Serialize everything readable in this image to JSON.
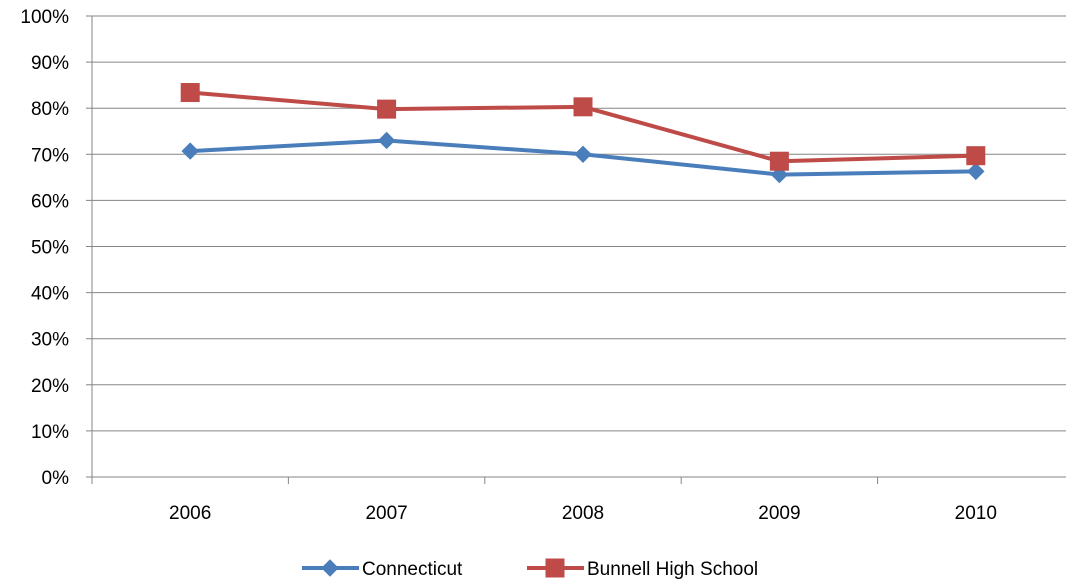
{
  "chart_data": {
    "type": "line",
    "title": "",
    "xlabel": "",
    "ylabel": "",
    "categories": [
      "2006",
      "2007",
      "2008",
      "2009",
      "2010"
    ],
    "ylim": [
      0,
      1
    ],
    "y_ticks": [
      0,
      0.1,
      0.2,
      0.3,
      0.4,
      0.5,
      0.6,
      0.7,
      0.8,
      0.9,
      1.0
    ],
    "y_tick_labels": [
      "0%",
      "10%",
      "20%",
      "30%",
      "40%",
      "50%",
      "60%",
      "70%",
      "80%",
      "90%",
      "100%"
    ],
    "grid": true,
    "legend_position": "bottom",
    "series": [
      {
        "name": "Connecticut",
        "color": "#4a7ebb",
        "marker": "diamond",
        "values": [
          0.707,
          0.73,
          0.7,
          0.656,
          0.663
        ]
      },
      {
        "name": "Bunnell High School",
        "color": "#be4b48",
        "marker": "square",
        "values": [
          0.834,
          0.798,
          0.803,
          0.685,
          0.697
        ]
      }
    ]
  }
}
